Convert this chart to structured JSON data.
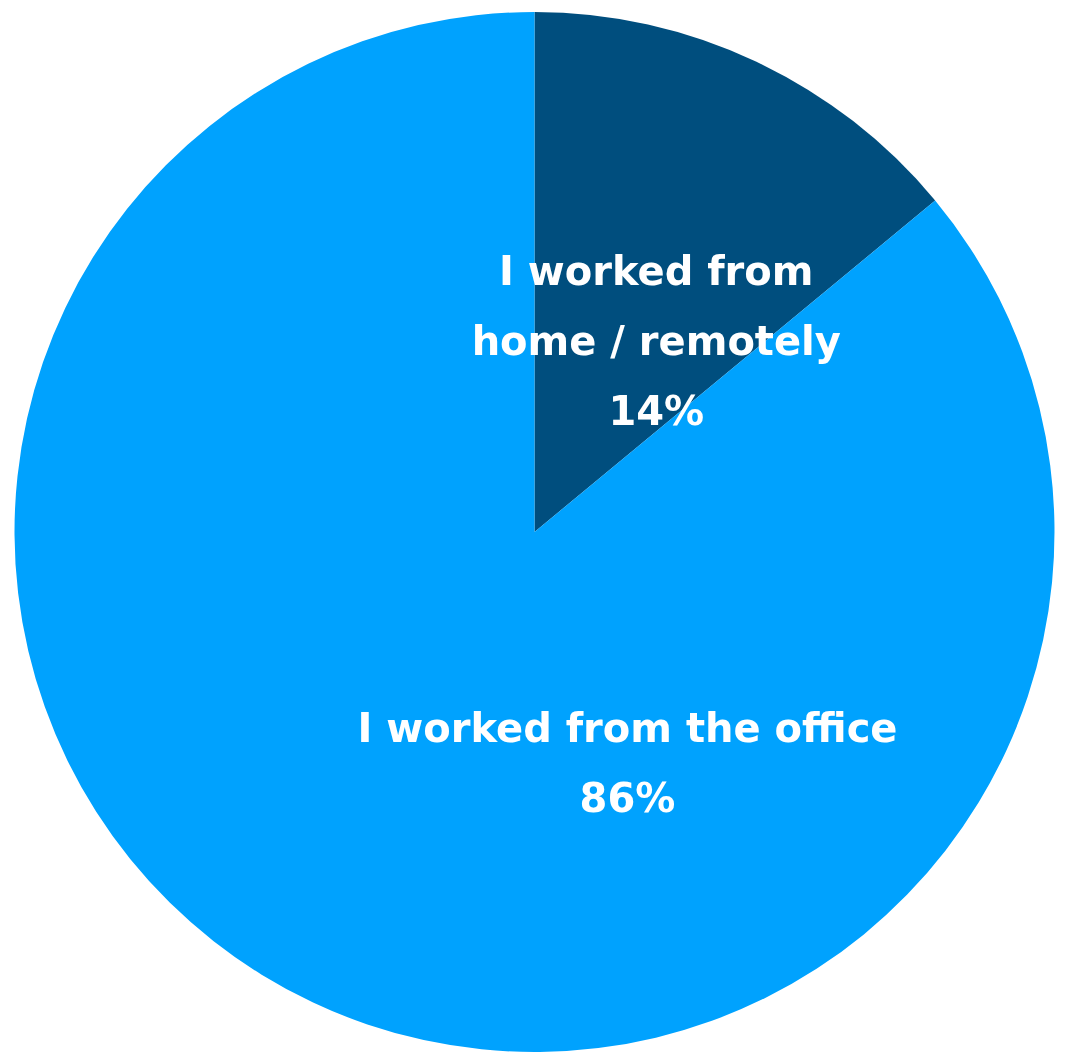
{
  "chart_data": {
    "type": "pie",
    "categories": [
      "I worked from home / remotely",
      "I worked from the office"
    ],
    "values": [
      14,
      86
    ],
    "colors": [
      "#004e7e",
      "#00a2fe"
    ],
    "value_labels": [
      "14%",
      "86%"
    ],
    "data_labels": true
  }
}
